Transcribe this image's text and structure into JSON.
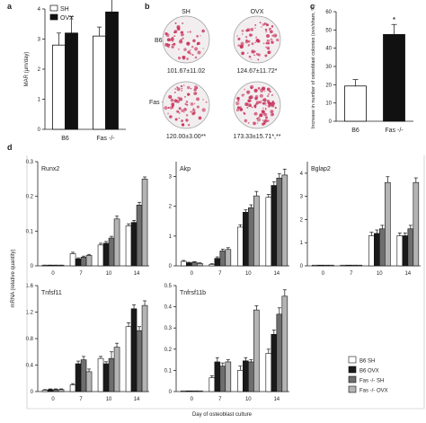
{
  "panel_letters": {
    "a": "a",
    "b": "b",
    "c": "c",
    "d": "d"
  },
  "panel_b": {
    "col_labels": [
      "SH",
      "OVX"
    ],
    "row_labels": [
      "B6",
      "Fas -/-"
    ],
    "values": [
      [
        "101.67±11.02",
        "124.67±11.72*"
      ],
      [
        "120.00±3.00**",
        "173.33±15.71*,**"
      ]
    ],
    "dish_colors": {
      "spot": "#c8325a",
      "plate": "#f2eef0"
    }
  },
  "chart_data": [
    {
      "id": "a",
      "type": "bar",
      "ylabel": "MAR (μm/day)",
      "ylim": [
        0,
        4
      ],
      "yticks": [
        0,
        1,
        2,
        3,
        4
      ],
      "categories": [
        "B6",
        "Fas -/-"
      ],
      "series": [
        {
          "name": "SH",
          "values": [
            2.8,
            3.1
          ],
          "errors": [
            0.4,
            0.3
          ],
          "color": "#ffffff"
        },
        {
          "name": "OVX",
          "values": [
            3.2,
            3.9
          ],
          "errors": [
            0.55,
            0.5
          ],
          "color": "#111111"
        }
      ],
      "annotations": [
        {
          "category": "Fas -/-",
          "series": "OVX",
          "text": "*\n**"
        }
      ],
      "legend": "top-left"
    },
    {
      "id": "c",
      "type": "bar",
      "ylabel": "Increase in number of osteoblast colonies (ovx/sham, %)",
      "ylim": [
        0,
        60
      ],
      "yticks": [
        0,
        10,
        20,
        30,
        40,
        50,
        60
      ],
      "categories": [
        "B6",
        "Fas -/-"
      ],
      "values": [
        19.3,
        47.5
      ],
      "errors": [
        3.5,
        5.5
      ],
      "colors": [
        "#ffffff",
        "#111111"
      ],
      "annotations": [
        {
          "category": "Fas -/-",
          "text": "*"
        }
      ]
    },
    {
      "id": "d",
      "type": "bar",
      "xlabel": "Day of osteoblast culture",
      "ylabel": "mRNA (relative quantity)",
      "categories": [
        "0",
        "7",
        "10",
        "14"
      ],
      "legend": "bottom-right",
      "series_names": [
        "B6 SH",
        "B6 OVX",
        "Fas -/- SH",
        "Fas -/- OVX"
      ],
      "series_colors": [
        "#ffffff",
        "#1a1a1a",
        "#6e6e6e",
        "#b4b4b4"
      ],
      "subplots": [
        {
          "title": "Runx2",
          "ylim": [
            0,
            0.3
          ],
          "yticks": [
            "0",
            "0.1",
            "0.2",
            "0.3"
          ],
          "values": [
            [
              0.0,
              0.0,
              0.0,
              0.0
            ],
            [
              0.035,
              0.02,
              0.025,
              0.03
            ],
            [
              0.06,
              0.065,
              0.08,
              0.135
            ],
            [
              0.115,
              0.125,
              0.175,
              0.25
            ]
          ],
          "errors": [
            [
              0.002,
              0.002,
              0.002,
              0.002
            ],
            [
              0.004,
              0.003,
              0.003,
              0.003
            ],
            [
              0.005,
              0.005,
              0.005,
              0.008
            ],
            [
              0.006,
              0.006,
              0.008,
              0.006
            ]
          ]
        },
        {
          "title": "Akp",
          "ylim": [
            0,
            3.5
          ],
          "yticks": [
            "0",
            "1",
            "2",
            "3"
          ],
          "values": [
            [
              0.15,
              0.1,
              0.12,
              0.08
            ],
            [
              0.05,
              0.25,
              0.5,
              0.55
            ],
            [
              1.3,
              1.8,
              1.95,
              2.35
            ],
            [
              2.3,
              2.7,
              2.95,
              3.05
            ]
          ],
          "errors": [
            [
              0.03,
              0.02,
              0.02,
              0.02
            ],
            [
              0.02,
              0.05,
              0.06,
              0.06
            ],
            [
              0.08,
              0.08,
              0.1,
              0.15
            ],
            [
              0.1,
              0.12,
              0.15,
              0.2
            ]
          ]
        },
        {
          "title": "Bglap2",
          "ylim": [
            0,
            4.5
          ],
          "yticks": [
            "0",
            "1",
            "2",
            "3",
            "4"
          ],
          "values": [
            [
              0.0,
              0.0,
              0.0,
              0.0
            ],
            [
              0.0,
              0.0,
              0.0,
              0.0
            ],
            [
              1.3,
              1.4,
              1.6,
              3.6
            ],
            [
              1.3,
              1.3,
              1.6,
              3.6
            ]
          ],
          "errors": [
            [
              0.0,
              0.0,
              0.0,
              0.0
            ],
            [
              0.0,
              0.0,
              0.0,
              0.0
            ],
            [
              0.15,
              0.15,
              0.15,
              0.25
            ],
            [
              0.12,
              0.12,
              0.15,
              0.2
            ]
          ]
        },
        {
          "title": "Tnfsf11",
          "ylim": [
            0,
            1.6
          ],
          "yticks": [
            "0",
            "0.4",
            "0.8",
            "1.2",
            "1.6"
          ],
          "values": [
            [
              0.02,
              0.03,
              0.03,
              0.03
            ],
            [
              0.1,
              0.42,
              0.48,
              0.3
            ],
            [
              0.5,
              0.42,
              0.5,
              0.67
            ],
            [
              0.98,
              1.25,
              0.92,
              1.3
            ]
          ],
          "errors": [
            [
              0.01,
              0.01,
              0.01,
              0.01
            ],
            [
              0.02,
              0.04,
              0.05,
              0.04
            ],
            [
              0.03,
              0.03,
              0.1,
              0.06
            ],
            [
              0.06,
              0.06,
              0.06,
              0.07
            ]
          ]
        },
        {
          "title": "Tnfrsf11b",
          "ylim": [
            0,
            0.5
          ],
          "yticks": [
            "0",
            "0.1",
            "0.2",
            "0.3",
            "0.4",
            "0.5"
          ],
          "values": [
            [
              0.0,
              0.0,
              0.0,
              0.0
            ],
            [
              0.065,
              0.14,
              0.12,
              0.14
            ],
            [
              0.1,
              0.145,
              0.14,
              0.385
            ],
            [
              0.18,
              0.27,
              0.365,
              0.45
            ]
          ],
          "errors": [
            [
              0.0,
              0.0,
              0.0,
              0.0
            ],
            [
              0.01,
              0.02,
              0.015,
              0.01
            ],
            [
              0.02,
              0.015,
              0.01,
              0.02
            ],
            [
              0.02,
              0.02,
              0.03,
              0.03
            ]
          ]
        }
      ]
    }
  ]
}
